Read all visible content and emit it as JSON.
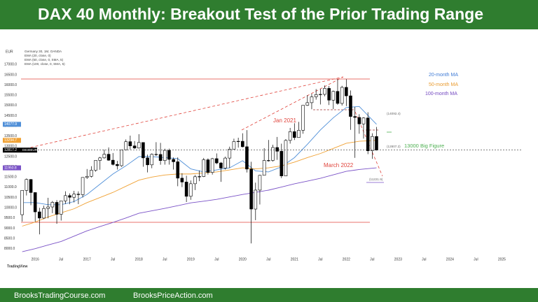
{
  "header": {
    "title": "DAX 40 Monthly: Breakout Test of the Prior Trading Range"
  },
  "chart_data": {
    "type": "candlestick",
    "symbol": "Germany 30, 1M, OANDA",
    "currency": "EUR",
    "ticker": "DE30EUR",
    "up_color": "#ffffff",
    "down_color": "#000000",
    "x": [
      2015.75,
      2015.833,
      2015.917,
      2016,
      2016.083,
      2016.167,
      2016.25,
      2016.333,
      2016.417,
      2016.5,
      2016.583,
      2016.667,
      2016.75,
      2016.833,
      2016.917,
      2017,
      2017.083,
      2017.167,
      2017.25,
      2017.333,
      2017.417,
      2017.5,
      2017.583,
      2017.667,
      2017.75,
      2017.833,
      2017.917,
      2018,
      2018.083,
      2018.167,
      2018.25,
      2018.333,
      2018.417,
      2018.5,
      2018.583,
      2018.667,
      2018.75,
      2018.833,
      2018.917,
      2019,
      2019.083,
      2019.167,
      2019.25,
      2019.333,
      2019.417,
      2019.5,
      2019.583,
      2019.667,
      2019.75,
      2019.833,
      2019.917,
      2020,
      2020.083,
      2020.167,
      2020.25,
      2020.333,
      2020.417,
      2020.5,
      2020.583,
      2020.667,
      2020.75,
      2020.833,
      2020.917,
      2021,
      2021.083,
      2021.167,
      2021.25,
      2021.333,
      2021.417,
      2021.5,
      2021.583,
      2021.667,
      2021.75,
      2021.833,
      2021.917,
      2022,
      2022.083,
      2022.167,
      2022.25,
      2022.333,
      2022.417,
      2022.5,
      2022.583
    ],
    "open": [
      9660,
      10850,
      11382,
      10743,
      9798,
      9495,
      9965,
      10039,
      10263,
      9680,
      10337,
      10593,
      10511,
      10665,
      10640,
      11481,
      11535,
      11834,
      12313,
      12438,
      12615,
      12325,
      12118,
      12056,
      12829,
      13230,
      13024,
      12918,
      13189,
      12436,
      12097,
      12612,
      12605,
      12306,
      12806,
      12364,
      12247,
      11447,
      11257,
      10559,
      11173,
      11516,
      11526,
      12344,
      11727,
      12399,
      12189,
      11939,
      12428,
      12867,
      13236,
      13249,
      12982,
      11890,
      9936,
      10862,
      11586,
      12311,
      12313,
      12945,
      12761,
      11556,
      13291,
      13719,
      13433,
      13786,
      15008,
      15136,
      15421,
      15531,
      15544,
      15835,
      15260,
      15688,
      15100,
      15885,
      15471,
      14461,
      14415,
      14098,
      14388,
      12784,
      13484
    ],
    "high": [
      10850,
      11430,
      11400,
      10743,
      9996,
      10104,
      10486,
      10331,
      10375,
      10337,
      10803,
      10701,
      10827,
      10802,
      11482,
      11893,
      12031,
      12313,
      12486,
      12842,
      12951,
      12676,
      12292,
      12829,
      13340,
      13526,
      13262,
      13597,
      13191,
      12600,
      12651,
      13204,
      13170,
      12887,
      12887,
      12457,
      12461,
      11690,
      11563,
      11334,
      11600,
      11823,
      12435,
      12413,
      12438,
      12656,
      12234,
      12494,
      12986,
      13374,
      13425,
      13640,
      13795,
      12248,
      11227,
      11607,
      12913,
      13314,
      13080,
      13460,
      13133,
      13355,
      13903,
      14131,
      14197,
      15008,
      15502,
      15569,
      15803,
      15810,
      15977,
      15951,
      15726,
      16290,
      15962,
      16285,
      15736,
      14925,
      14573,
      14429,
      14668,
      13640,
      13947
    ],
    "low": [
      9325,
      10600,
      10124,
      9314,
      8699,
      9450,
      9484,
      9737,
      9214,
      9373,
      10186,
      10173,
      10262,
      10175,
      10500,
      11410,
      11478,
      11760,
      11856,
      12402,
      12295,
      12065,
      11868,
      12000,
      12813,
      12846,
      12873,
      12893,
      12003,
      11727,
      11932,
      12534,
      12104,
      12107,
      12109,
      11866,
      11051,
      11009,
      10279,
      10387,
      10864,
      11299,
      11500,
      11620,
      11620,
      12129,
      11266,
      11870,
      11945,
      12853,
      12940,
      12948,
      11724,
      8256,
      9393,
      10160,
      11585,
      12253,
      12253,
      12341,
      11450,
      11556,
      13134,
      13311,
      13432,
      13617,
      14975,
      14816,
      15284,
      15048,
      15448,
      15022,
      14819,
      15032,
      14996,
      14970,
      13807,
      12439,
      13617,
      13381,
      12619,
      12391,
      12800
    ],
    "close": [
      10850,
      11382,
      10743,
      9798,
      9495,
      9965,
      10039,
      10263,
      9680,
      10337,
      10593,
      10511,
      10665,
      10640,
      11481,
      11535,
      11834,
      12313,
      12438,
      12615,
      12325,
      12118,
      12056,
      12829,
      13230,
      13024,
      12918,
      13189,
      12436,
      12097,
      12612,
      12605,
      12306,
      12806,
      12364,
      12247,
      11447,
      11257,
      10559,
      11173,
      11516,
      11526,
      12344,
      11727,
      12399,
      12189,
      11939,
      12428,
      12867,
      13236,
      13249,
      12982,
      11890,
      9936,
      10862,
      11586,
      12311,
      12313,
      12945,
      12761,
      11556,
      13291,
      13719,
      13433,
      13786,
      15008,
      15136,
      15421,
      15531,
      15544,
      15835,
      15260,
      15688,
      15100,
      15885,
      15471,
      14461,
      14415,
      14098,
      14388,
      12784,
      13484,
      12817.2
    ],
    "lines": [
      {
        "name": "EMA (20, close, 0)",
        "color": "#4f8fd8",
        "x": [
          2015.75,
          2016,
          2016.25,
          2016.5,
          2016.75,
          2017,
          2017.25,
          2017.5,
          2017.75,
          2018,
          2018.25,
          2018.5,
          2018.75,
          2019,
          2019.25,
          2019.5,
          2019.75,
          2020,
          2020.25,
          2020.5,
          2020.75,
          2021,
          2021.25,
          2021.5,
          2021.75,
          2022,
          2022.25,
          2022.583
        ],
        "values": [
          10250,
          10250,
          10150,
          10150,
          10300,
          10650,
          11150,
          11650,
          12050,
          12500,
          12500,
          12450,
          12400,
          11900,
          11750,
          11850,
          11950,
          12300,
          11800,
          11750,
          12000,
          12450,
          13100,
          13800,
          14400,
          14900,
          14950,
          14077.9
        ]
      },
      {
        "name": "EMA (50, close, 0, SMA, 5)",
        "color": "#f0a133",
        "x": [
          2015.75,
          2016,
          2016.25,
          2016.5,
          2016.75,
          2017,
          2017.25,
          2017.5,
          2017.75,
          2018,
          2018.25,
          2018.5,
          2018.75,
          2019,
          2019.25,
          2019.5,
          2019.75,
          2020,
          2020.25,
          2020.5,
          2020.75,
          2021,
          2021.25,
          2021.5,
          2021.75,
          2022,
          2022.25,
          2022.583
        ],
        "values": [
          9100,
          9300,
          9550,
          9750,
          9950,
          10250,
          10500,
          10750,
          11050,
          11350,
          11500,
          11600,
          11650,
          11650,
          11700,
          11750,
          11850,
          11950,
          11900,
          11950,
          12050,
          12230,
          12450,
          12650,
          12900,
          13150,
          13250,
          13294.7
        ]
      },
      {
        "name": "EMA (100, close, 0, SMA, 5)",
        "color": "#7a52c7",
        "x": [
          2015.75,
          2016,
          2016.25,
          2016.5,
          2016.75,
          2017,
          2017.25,
          2017.5,
          2017.75,
          2018,
          2018.25,
          2018.5,
          2018.75,
          2019,
          2019.25,
          2019.5,
          2019.75,
          2020,
          2020.25,
          2020.5,
          2020.75,
          2021,
          2021.25,
          2021.5,
          2021.75,
          2022,
          2022.25,
          2022.583
        ],
        "values": [
          7850,
          8000,
          8180,
          8350,
          8610,
          8870,
          9080,
          9280,
          9500,
          9730,
          9850,
          9970,
          10100,
          10240,
          10320,
          10410,
          10530,
          10650,
          10750,
          10860,
          11010,
          11170,
          11300,
          11440,
          11610,
          11780,
          11870,
          11950.8
        ]
      }
    ],
    "xlim": [
      2015.7,
      2025.4
    ],
    "xticks": [
      2016,
      {
        "value": 2016.5,
        "label": "Jul"
      },
      2017,
      {
        "value": 2017.5,
        "label": "Jul"
      },
      2018,
      {
        "value": 2018.5,
        "label": "Jul"
      },
      2019,
      {
        "value": 2019.5,
        "label": "Jul"
      },
      2020,
      {
        "value": 2020.5,
        "label": "Jul"
      },
      2021,
      {
        "value": 2021.5,
        "label": "Jul"
      },
      2022,
      {
        "value": 2022.5,
        "label": "Jul"
      },
      2023,
      {
        "value": 2023.5,
        "label": "Jul"
      },
      2024,
      {
        "value": 2024.5,
        "label": "Jul"
      },
      2025
    ],
    "ylim": [
      7750,
      17900
    ],
    "yticks": [
      {
        "value": 8000,
        "label": "8000.0"
      },
      {
        "value": 8500,
        "label": "8500.0"
      },
      {
        "value": 9000,
        "label": "9000.0"
      },
      {
        "value": 9500,
        "label": "9500.0"
      },
      {
        "value": 10000,
        "label": "10000.0"
      },
      {
        "value": 10500,
        "label": "10500.0"
      },
      {
        "value": 11000,
        "label": "11000.0"
      },
      {
        "value": 11500,
        "label": "11500.0"
      },
      {
        "value": 12000,
        "label": "12000.0"
      },
      {
        "value": 12500,
        "label": "12500.0"
      },
      {
        "value": 13000,
        "label": "13000.0"
      },
      {
        "value": 13500,
        "label": "13500.0"
      },
      {
        "value": 14000,
        "label": "14000.0"
      },
      {
        "value": 14500,
        "label": "14500.0"
      },
      {
        "value": 15000,
        "label": "15000.0"
      },
      {
        "value": 15500,
        "label": "15500.0"
      },
      {
        "value": 16000,
        "label": "16000.0"
      },
      {
        "value": 16500,
        "label": "16500.0"
      },
      {
        "value": 17000,
        "label": "17000.0"
      }
    ],
    "grid": false,
    "annotations": [
      {
        "text": "20-month MA",
        "color": "#3f7bd6"
      },
      {
        "text": "50-month MA",
        "color": "#e99b2f"
      },
      {
        "text": "100-month MA",
        "color": "#7348c0"
      },
      {
        "text": "Jan 2021",
        "color": "#e0443c"
      },
      {
        "text": "March 2022",
        "color": "#e0443c"
      },
      {
        "text": "(14092.4)",
        "color": "#666666"
      },
      {
        "text": "(12807.2)",
        "color": "#666666"
      },
      {
        "text": "13000 Big Figure",
        "color": "#4caf50"
      },
      {
        "text": "(11221.9)",
        "color": "#666666"
      }
    ]
  },
  "watermark": "TradingView",
  "footer": {
    "left": "BrooksTradingCourse.com",
    "right": "BrooksPriceAction.com"
  }
}
